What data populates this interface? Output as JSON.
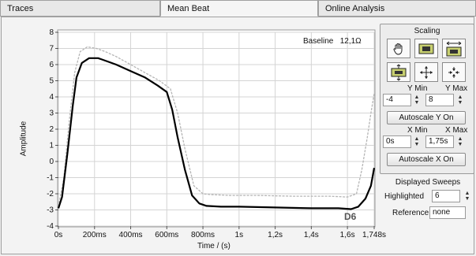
{
  "tabs": [
    {
      "label": "Traces",
      "active": false
    },
    {
      "label": "Mean Beat",
      "active": true
    },
    {
      "label": "Online Analysis",
      "active": false
    }
  ],
  "plot": {
    "ylabel": "Amplitude",
    "xlabel": "Time / (s)",
    "baseline_label": "Baseline",
    "baseline_value": "12,1Ω",
    "trace_label": "D6",
    "colors": {
      "mean": "#000000",
      "ref": "#b5b5b5",
      "grid": "#d4d4d4",
      "bg": "#ffffff"
    }
  },
  "scaling": {
    "title": "Scaling",
    "tools": [
      {
        "name": "pan-hand-icon",
        "selected": false
      },
      {
        "name": "zoom-box-icon",
        "selected": false
      },
      {
        "name": "zoom-x-icon",
        "selected": false
      },
      {
        "name": "zoom-y-icon",
        "selected": false
      },
      {
        "name": "zoom-in-icon",
        "selected": false
      },
      {
        "name": "zoom-out-icon",
        "selected": false
      }
    ],
    "y_min_label": "Y Min",
    "y_max_label": "Y Max",
    "y_min": "-4",
    "y_max": "8",
    "autoscale_y": "Autoscale Y On",
    "x_min_label": "X Min",
    "x_max_label": "X Max",
    "x_min": "0s",
    "x_max": "1,75s",
    "autoscale_x": "Autoscale X On"
  },
  "sweeps": {
    "title": "Displayed Sweeps",
    "highlighted_label": "Highlighted",
    "highlighted_value": "6",
    "reference_label": "Reference",
    "reference_value": "none"
  },
  "chart_data": {
    "type": "line",
    "xlabel": "Time / (s)",
    "ylabel": "Amplitude",
    "xlim": [
      0,
      1.748
    ],
    "ylim": [
      -4,
      8
    ],
    "x_ticks": [
      0,
      0.2,
      0.4,
      0.6,
      0.8,
      1.0,
      1.2,
      1.4,
      1.6,
      1.748
    ],
    "x_tick_labels": [
      "0s",
      "200ms",
      "400ms",
      "600ms",
      "800ms",
      "1s",
      "1,2s",
      "1,4s",
      "1,6s",
      "1,748s"
    ],
    "y_ticks": [
      -4,
      -3,
      -2,
      -1,
      0,
      1,
      2,
      3,
      4,
      5,
      6,
      7,
      8
    ],
    "y_tick_labels": [
      "-4",
      "-3",
      "-2",
      "-1",
      "0",
      "1",
      "2",
      "3",
      "4",
      "5",
      "6",
      "7",
      "8"
    ],
    "grid": true,
    "series": [
      {
        "name": "D6",
        "color": "#000000",
        "x": [
          0,
          0.02,
          0.05,
          0.08,
          0.1,
          0.13,
          0.17,
          0.22,
          0.27,
          0.32,
          0.4,
          0.48,
          0.55,
          0.6,
          0.63,
          0.66,
          0.7,
          0.74,
          0.78,
          0.82,
          0.9,
          1.0,
          1.2,
          1.4,
          1.55,
          1.62,
          1.66,
          1.7,
          1.73,
          1.748
        ],
        "y": [
          -2.9,
          -2.2,
          0.5,
          3.5,
          5.2,
          6.1,
          6.4,
          6.4,
          6.2,
          6.0,
          5.6,
          5.2,
          4.7,
          4.3,
          3.2,
          1.5,
          -0.5,
          -2.1,
          -2.6,
          -2.75,
          -2.8,
          -2.8,
          -2.85,
          -2.9,
          -2.9,
          -2.95,
          -2.8,
          -2.3,
          -1.5,
          -0.4
        ]
      },
      {
        "name": "",
        "color": "#b5b5b5",
        "x": [
          0,
          0.03,
          0.06,
          0.09,
          0.12,
          0.16,
          0.21,
          0.26,
          0.32,
          0.4,
          0.48,
          0.56,
          0.62,
          0.66,
          0.7,
          0.75,
          0.8,
          0.84,
          0.95,
          1.1,
          1.3,
          1.5,
          1.6,
          1.65,
          1.68,
          1.71,
          1.73,
          1.748
        ],
        "y": [
          -2.8,
          -1.0,
          2.5,
          5.5,
          6.8,
          7.1,
          7.0,
          6.8,
          6.5,
          6.0,
          5.5,
          5.0,
          4.5,
          3.0,
          0.8,
          -1.5,
          -2.0,
          -2.05,
          -2.1,
          -2.1,
          -2.15,
          -2.15,
          -2.2,
          -2.0,
          -0.5,
          1.5,
          3.0,
          4.2
        ]
      }
    ]
  }
}
